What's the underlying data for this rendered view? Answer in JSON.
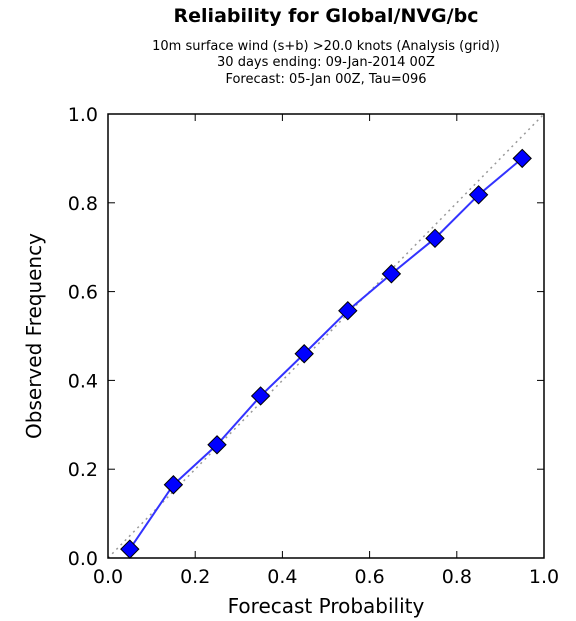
{
  "chart_data": {
    "type": "line",
    "title": "Reliability for Global/NVG/bc",
    "subtitle_lines": [
      "10m surface wind (s+b) >20.0 knots (Analysis (grid))",
      "30 days ending: 09-Jan-2014 00Z",
      "Forecast: 05-Jan 00Z, Tau=096"
    ],
    "xlabel": "Forecast Probability",
    "ylabel": "Observed Frequency",
    "xlim": [
      0.0,
      1.0
    ],
    "ylim": [
      0.0,
      1.0
    ],
    "x_ticks": [
      "0.0",
      "0.2",
      "0.4",
      "0.6",
      "0.8",
      "1.0"
    ],
    "y_ticks": [
      "0.0",
      "0.2",
      "0.4",
      "0.6",
      "0.8",
      "1.0"
    ],
    "grid": false,
    "series": [
      {
        "x": [
          0.05,
          0.15,
          0.25,
          0.35,
          0.45,
          0.55,
          0.65,
          0.75,
          0.85,
          0.95
        ],
        "y": [
          0.02,
          0.165,
          0.255,
          0.365,
          0.46,
          0.557,
          0.64,
          0.72,
          0.818,
          0.9
        ],
        "color": "#0000ff",
        "line_color": "#3333ff",
        "marker": "diamond"
      }
    ],
    "reference_line": {
      "x": [
        0.0,
        1.0
      ],
      "y": [
        0.0,
        1.0
      ],
      "color": "#999999",
      "style": "dotted"
    }
  }
}
